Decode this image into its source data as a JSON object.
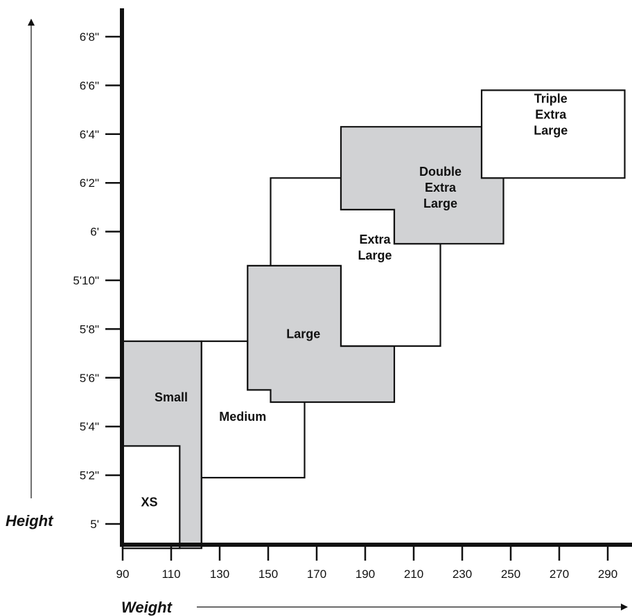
{
  "chart_data": {
    "type": "area",
    "title": "",
    "xlabel": "Weight",
    "ylabel": "Height",
    "x_ticks": [
      90,
      110,
      130,
      150,
      170,
      190,
      210,
      230,
      250,
      270,
      290
    ],
    "y_ticks": [
      {
        "inches": 60,
        "label": "5'"
      },
      {
        "inches": 62,
        "label": "5'2\""
      },
      {
        "inches": 64,
        "label": "5'4\""
      },
      {
        "inches": 66,
        "label": "5'6\""
      },
      {
        "inches": 68,
        "label": "5'8\""
      },
      {
        "inches": 70,
        "label": "5'10\""
      },
      {
        "inches": 72,
        "label": "6'"
      },
      {
        "inches": 74,
        "label": "6'2\""
      },
      {
        "inches": 76,
        "label": "6'4\""
      },
      {
        "inches": 78,
        "label": "6'6\""
      },
      {
        "inches": 80,
        "label": "6'8\""
      }
    ],
    "xlim": [
      90,
      300
    ],
    "ylim": [
      59,
      81
    ],
    "regions": [
      {
        "name": "Small",
        "fill": "#d1d2d4",
        "label_lines": [
          "Small"
        ],
        "label_at": [
          110,
          65.2
        ],
        "polygon": [
          [
            90,
            59
          ],
          [
            90,
            67.5
          ],
          [
            122.5,
            67.5
          ],
          [
            122.5,
            59
          ]
        ]
      },
      {
        "name": "XS",
        "fill": "#ffffff",
        "label_lines": [
          "XS"
        ],
        "label_at": [
          101,
          60.9
        ],
        "polygon": [
          [
            90,
            59
          ],
          [
            90,
            63.2
          ],
          [
            113.5,
            63.2
          ],
          [
            113.5,
            59
          ]
        ]
      },
      {
        "name": "Medium",
        "fill": "#ffffff",
        "label_lines": [
          "Medium"
        ],
        "label_at": [
          139.5,
          64.4
        ],
        "polygon": [
          [
            122.5,
            59
          ],
          [
            122.5,
            67.5
          ],
          [
            141.5,
            67.5
          ],
          [
            141.5,
            65.5
          ],
          [
            165,
            65.5
          ],
          [
            165,
            61.9
          ],
          [
            122.5,
            61.9
          ]
        ]
      },
      {
        "name": "Large",
        "fill": "#d1d2d4",
        "label_lines": [
          "Large"
        ],
        "label_at": [
          164.5,
          67.8
        ],
        "polygon": [
          [
            141.5,
            67.5
          ],
          [
            141.5,
            70.6
          ],
          [
            180,
            70.6
          ],
          [
            180,
            67.3
          ],
          [
            202,
            67.3
          ],
          [
            202,
            65
          ],
          [
            151,
            65
          ],
          [
            151,
            65.5
          ],
          [
            141.5,
            65.5
          ]
        ]
      },
      {
        "name": "Extra Large",
        "fill": "#ffffff",
        "label_lines": [
          "Extra",
          "Large"
        ],
        "label_at": [
          194,
          71.35
        ],
        "polygon": [
          [
            151,
            70.6
          ],
          [
            151,
            74.2
          ],
          [
            180,
            74.2
          ],
          [
            180,
            72.9
          ],
          [
            202,
            72.9
          ],
          [
            202,
            71.5
          ],
          [
            221,
            71.5
          ],
          [
            221,
            67.3
          ],
          [
            180,
            67.3
          ],
          [
            180,
            70.6
          ]
        ]
      },
      {
        "name": "Double Extra Large",
        "fill": "#d1d2d4",
        "label_lines": [
          "Double",
          "Extra",
          "Large"
        ],
        "label_at": [
          221,
          73.8
        ],
        "polygon": [
          [
            180,
            72.9
          ],
          [
            180,
            76.3
          ],
          [
            238,
            76.3
          ],
          [
            238,
            74.2
          ],
          [
            247,
            74.2
          ],
          [
            247,
            71.5
          ],
          [
            202,
            71.5
          ],
          [
            202,
            72.9
          ]
        ]
      },
      {
        "name": "Triple Extra Large",
        "fill": "#ffffff",
        "label_lines": [
          "Triple",
          "Extra",
          "Large"
        ],
        "label_at": [
          266.5,
          76.8
        ],
        "polygon": [
          [
            238,
            74.2
          ],
          [
            238,
            77.8
          ],
          [
            297,
            77.8
          ],
          [
            297,
            74.2
          ]
        ]
      }
    ]
  }
}
